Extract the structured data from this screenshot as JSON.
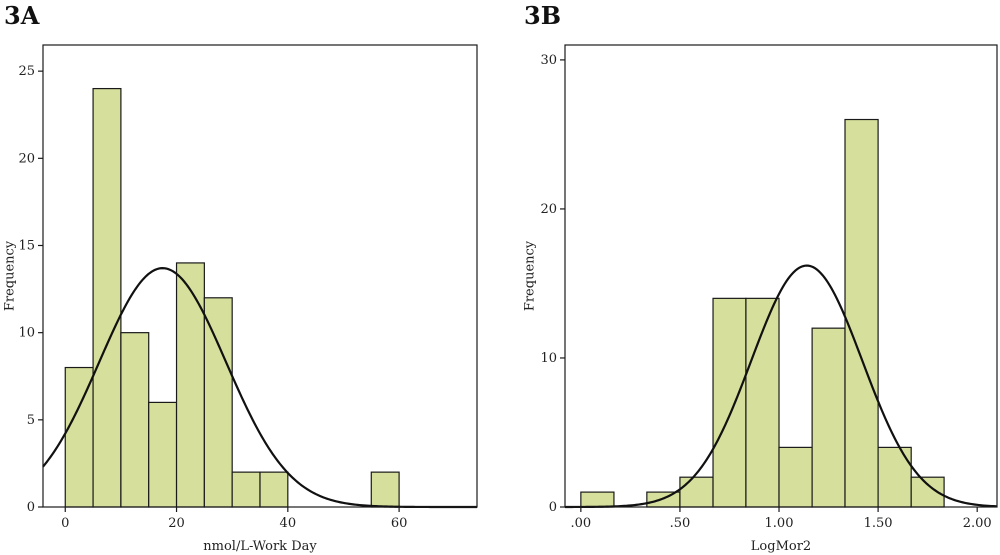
{
  "chart_data": [
    {
      "type": "bar",
      "panel_label": "3A",
      "title": "",
      "xlabel": "nmol/L-Work Day",
      "ylabel": "Frequency",
      "xlim": [
        -4,
        74
      ],
      "ylim": [
        0,
        26.5
      ],
      "xticks": [
        0,
        20,
        40,
        60
      ],
      "xtick_labels": [
        "0",
        "20",
        "40",
        "60"
      ],
      "yticks": [
        0,
        5,
        10,
        15,
        20,
        25
      ],
      "ytick_labels": [
        "0",
        "5",
        "10",
        "15",
        "20",
        "25"
      ],
      "bins": [
        {
          "x0": 0,
          "x1": 5,
          "value": 8
        },
        {
          "x0": 5,
          "x1": 10,
          "value": 24
        },
        {
          "x0": 10,
          "x1": 15,
          "value": 10
        },
        {
          "x0": 15,
          "x1": 20,
          "value": 6
        },
        {
          "x0": 20,
          "x1": 25,
          "value": 14
        },
        {
          "x0": 25,
          "x1": 30,
          "value": 12
        },
        {
          "x0": 30,
          "x1": 35,
          "value": 2
        },
        {
          "x0": 35,
          "x1": 40,
          "value": 2
        },
        {
          "x0": 55,
          "x1": 60,
          "value": 2
        }
      ],
      "normal_curve": {
        "mean": 17.5,
        "sd": 11.4,
        "peak": 13.7
      },
      "grid": false,
      "legend": "none"
    },
    {
      "type": "bar",
      "panel_label": "3B",
      "title": "",
      "xlabel": "LogMor2",
      "ylabel": "Frequency",
      "xlim": [
        -0.08,
        2.1
      ],
      "ylim": [
        0,
        31
      ],
      "xticks": [
        0,
        0.5,
        1.0,
        1.5,
        2.0
      ],
      "xtick_labels": [
        ".00",
        ".50",
        "1.00",
        "1.50",
        "2.00"
      ],
      "yticks": [
        0,
        10,
        20,
        30
      ],
      "ytick_labels": [
        "0",
        "10",
        "20",
        "30"
      ],
      "bins": [
        {
          "x0": 0.0,
          "x1": 0.167,
          "value": 1
        },
        {
          "x0": 0.333,
          "x1": 0.5,
          "value": 1
        },
        {
          "x0": 0.5,
          "x1": 0.667,
          "value": 2
        },
        {
          "x0": 0.667,
          "x1": 0.833,
          "value": 14
        },
        {
          "x0": 0.833,
          "x1": 1.0,
          "value": 14
        },
        {
          "x0": 1.0,
          "x1": 1.167,
          "value": 4
        },
        {
          "x0": 1.167,
          "x1": 1.333,
          "value": 12
        },
        {
          "x0": 1.333,
          "x1": 1.5,
          "value": 26
        },
        {
          "x0": 1.5,
          "x1": 1.667,
          "value": 4
        },
        {
          "x0": 1.667,
          "x1": 1.833,
          "value": 2
        }
      ],
      "normal_curve": {
        "mean": 1.14,
        "sd": 0.28,
        "peak": 16.2
      },
      "grid": false,
      "legend": "none"
    }
  ]
}
